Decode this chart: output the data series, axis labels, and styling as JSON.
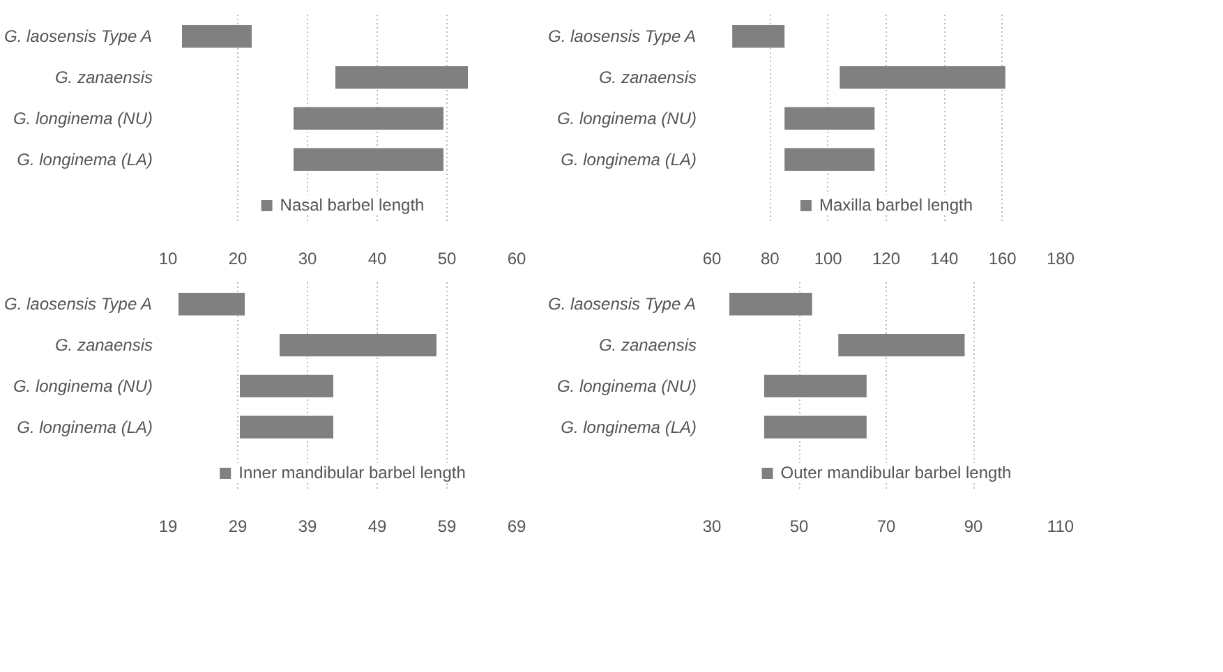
{
  "chart_data": [
    {
      "type": "bar",
      "orientation": "horizontal",
      "categories": [
        "G. laosensis Type A",
        "G. zanaensis",
        "G. longinema (NU)",
        "G. longinema (LA)"
      ],
      "series": [
        {
          "name": "Nasal barbel length",
          "color": "#808080",
          "base": [
            12,
            34,
            28,
            28
          ],
          "values": [
            10,
            19,
            21.5,
            21.5
          ]
        }
      ],
      "xlim": [
        10,
        60
      ],
      "xticks": [
        10,
        20,
        30,
        40,
        50,
        60
      ],
      "grid": "x",
      "legend": "bottom"
    },
    {
      "type": "bar",
      "orientation": "horizontal",
      "categories": [
        "G. laosensis Type A",
        "G. zanaensis",
        "G. longinema (NU)",
        "G. longinema (LA)"
      ],
      "series": [
        {
          "name": "Maxilla barbel length",
          "color": "#808080",
          "base": [
            67,
            104,
            85,
            85
          ],
          "values": [
            18,
            57,
            31,
            31
          ]
        }
      ],
      "xlim": [
        60,
        180
      ],
      "xticks": [
        60,
        80,
        100,
        120,
        140,
        160,
        180
      ],
      "grid": "x",
      "legend": "bottom"
    },
    {
      "type": "bar",
      "orientation": "horizontal",
      "categories": [
        "G. laosensis Type A",
        "G. zanaensis",
        "G. longinema (NU)",
        "G. longinema (LA)"
      ],
      "series": [
        {
          "name": "Inner mandibular barbel length",
          "color": "#808080",
          "base": [
            20.5,
            35,
            29.3,
            29.3
          ],
          "values": [
            9.5,
            22.5,
            13.4,
            13.4
          ]
        }
      ],
      "xlim": [
        19,
        69
      ],
      "xticks": [
        19,
        29,
        39,
        49,
        59,
        69
      ],
      "grid": "x",
      "legend": "bottom"
    },
    {
      "type": "bar",
      "orientation": "horizontal",
      "categories": [
        "G. laosensis Type A",
        "G. zanaensis",
        "G. longinema (NU)",
        "G. longinema (LA)"
      ],
      "series": [
        {
          "name": "Outer mandibular barbel length",
          "color": "#808080",
          "base": [
            34,
            59,
            42,
            42
          ],
          "values": [
            19,
            29,
            23.5,
            23.5
          ]
        }
      ],
      "xlim": [
        30,
        110
      ],
      "xticks": [
        30,
        50,
        70,
        90,
        110
      ],
      "grid": "x",
      "legend": "bottom"
    }
  ]
}
